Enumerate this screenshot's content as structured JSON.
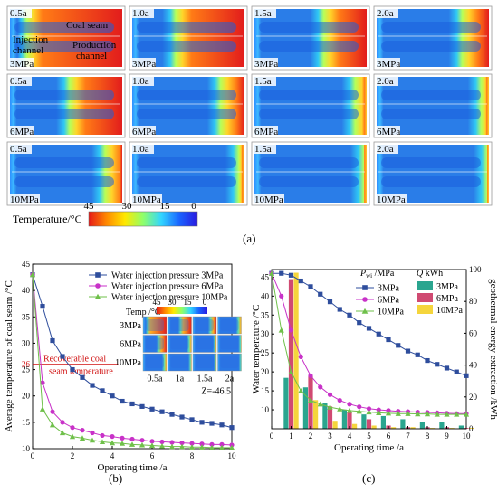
{
  "part_a": {
    "rows": [
      {
        "pressure": "3MPa",
        "times": [
          "0.5a",
          "1.0a",
          "1.5a",
          "2.0a"
        ],
        "hot": [
          1.0,
          0.72,
          0.45,
          0.28
        ]
      },
      {
        "pressure": "6MPa",
        "times": [
          "0.5a",
          "1.0a",
          "1.5a",
          "2.0a"
        ],
        "hot": [
          0.55,
          0.25,
          0.12,
          0.08
        ]
      },
      {
        "pressure": "10MPa",
        "times": [
          "0.5a",
          "1.0a",
          "1.5a",
          "2.0a"
        ],
        "hot": [
          0.18,
          0.06,
          0.03,
          0.02
        ]
      }
    ],
    "labels": {
      "coal_seam": "Coal seam",
      "injection": "Injection channel",
      "production": "Production channel"
    },
    "colorbar": {
      "title": "Temperature/°C",
      "ticks": [
        "45",
        "30",
        "15",
        "0"
      ],
      "colors": [
        "#e51818",
        "#ff8a00",
        "#ffe800",
        "#8fff6a",
        "#32d6ff",
        "#1a64ff",
        "#2a1ae0"
      ]
    },
    "panel_label": "(a)"
  },
  "chart_data": [
    {
      "type": "line",
      "panel_label": "(b)",
      "xlabel": "Operating time /a",
      "ylabel": "Average temperature of coal seam /°C",
      "xlim": [
        0,
        10
      ],
      "ylim": [
        10,
        45
      ],
      "xticks": [
        0,
        2,
        4,
        6,
        8,
        10
      ],
      "yticks": [
        10,
        15,
        20,
        25,
        30,
        35,
        40,
        45
      ],
      "extra_ytick": "26",
      "recoverable_line": 26,
      "recoverable_label": "Recoverable coal seam temperature",
      "z_label": "Z=-46.5",
      "x": [
        0,
        0.5,
        1,
        1.5,
        2,
        2.5,
        3,
        3.5,
        4,
        4.5,
        5,
        5.5,
        6,
        6.5,
        7,
        7.5,
        8,
        8.5,
        9,
        9.5,
        10
      ],
      "series": [
        {
          "name": "Water injection pressure 3MPa",
          "color": "#2e4d9c",
          "marker": "square",
          "values": [
            43,
            37,
            30.5,
            27.5,
            25,
            23.5,
            22,
            21,
            20,
            19,
            18.5,
            18,
            17.5,
            17,
            16.5,
            16,
            15.5,
            15,
            14.8,
            14.5,
            14
          ]
        },
        {
          "name": "Water injection pressure 6MPa",
          "color": "#c832c8",
          "marker": "circle",
          "values": [
            43,
            22.5,
            17,
            15,
            14,
            13.5,
            13,
            12.5,
            12.3,
            12,
            11.8,
            11.6,
            11.4,
            11.3,
            11.2,
            11.1,
            11,
            10.9,
            10.8,
            10.8,
            10.7
          ]
        },
        {
          "name": "Water injection pressure 10MPa",
          "color": "#6fc04a",
          "marker": "triangle",
          "values": [
            43,
            17.5,
            14.5,
            13,
            12.3,
            12,
            11.6,
            11.3,
            11.1,
            11,
            10.8,
            10.7,
            10.6,
            10.5,
            10.4,
            10.4,
            10.3,
            10.3,
            10.2,
            10.2,
            10.2
          ]
        }
      ],
      "inset": {
        "title": "Temp /°C",
        "ticks": [
          "45",
          "30",
          "15",
          "0"
        ],
        "rows": [
          {
            "label": "3MPa",
            "hot": [
              0.95,
              0.55,
              0.3,
              0.15
            ]
          },
          {
            "label": "6MPa",
            "hot": [
              0.4,
              0.12,
              0.06,
              0.03
            ]
          },
          {
            "label": "10MPa",
            "hot": [
              0.12,
              0.04,
              0.02,
              0.01
            ]
          }
        ],
        "xlabels": [
          "0.5a",
          "1a",
          "1.5a",
          "2a"
        ]
      }
    },
    {
      "type": "line+bar",
      "panel_label": "(c)",
      "xlabel": "Operating time /a",
      "ylabel_left": "Water temperature /°C",
      "ylabel_right": "geothermal energy extraction /kWh",
      "xlim": [
        0,
        10
      ],
      "ylim_left": [
        5,
        47
      ],
      "ylim_right": [
        0,
        100
      ],
      "xticks": [
        0,
        1,
        2,
        3,
        4,
        5,
        6,
        7,
        8,
        9,
        10
      ],
      "yticks_left": [
        10,
        15,
        20,
        25,
        30,
        35,
        40,
        45
      ],
      "yticks_right": [
        0,
        20,
        40,
        60,
        80,
        100
      ],
      "legend_line_title_main": "P",
      "legend_line_title_sub": "wi",
      "legend_line_title_unit": " /MPa",
      "legend_bar_title": "Q",
      "legend_bar_unit": "kWh",
      "x": [
        0,
        0.5,
        1,
        1.5,
        2,
        2.5,
        3,
        3.5,
        4,
        4.5,
        5,
        5.5,
        6,
        6.5,
        7,
        7.5,
        8,
        8.5,
        9,
        9.5,
        10
      ],
      "line_series": [
        {
          "name": "3MPa",
          "color": "#2e4d9c",
          "marker": "square",
          "values": [
            46,
            46,
            45.5,
            44,
            42.5,
            40.5,
            38.5,
            36.5,
            35,
            33,
            31.5,
            30,
            28.5,
            27,
            25.5,
            24.5,
            23,
            22,
            21,
            20,
            19
          ]
        },
        {
          "name": "6MPa",
          "color": "#c832c8",
          "marker": "circle",
          "values": [
            46,
            40,
            31,
            24,
            19,
            16,
            14,
            12.5,
            11.5,
            10.8,
            10.3,
            10,
            9.8,
            9.6,
            9.5,
            9.4,
            9.3,
            9.2,
            9.1,
            9,
            9
          ]
        },
        {
          "name": "10MPa",
          "color": "#6fc04a",
          "marker": "triangle",
          "values": [
            46,
            31,
            20,
            15,
            12.5,
            11.5,
            10.7,
            10.2,
            9.8,
            9.6,
            9.4,
            9.2,
            9.1,
            9,
            9,
            8.9,
            8.9,
            8.8,
            8.8,
            8.8,
            8.8
          ]
        }
      ],
      "bar_x": [
        1,
        2,
        3,
        4,
        5,
        6,
        7,
        8,
        9,
        10
      ],
      "bar_series": [
        {
          "name": "3MPa",
          "color": "#2aa58f",
          "values": [
            32,
            26,
            16,
            12,
            9,
            8,
            6,
            4,
            4,
            2
          ]
        },
        {
          "name": "6MPa",
          "color": "#d04a72",
          "values": [
            94,
            33,
            14,
            10,
            6,
            2,
            1,
            1,
            1,
            0.5
          ]
        },
        {
          "name": "10MPa",
          "color": "#f5d53c",
          "values": [
            98,
            18,
            5,
            3,
            2,
            1,
            1,
            0.5,
            0.5,
            0.5
          ]
        }
      ]
    }
  ]
}
